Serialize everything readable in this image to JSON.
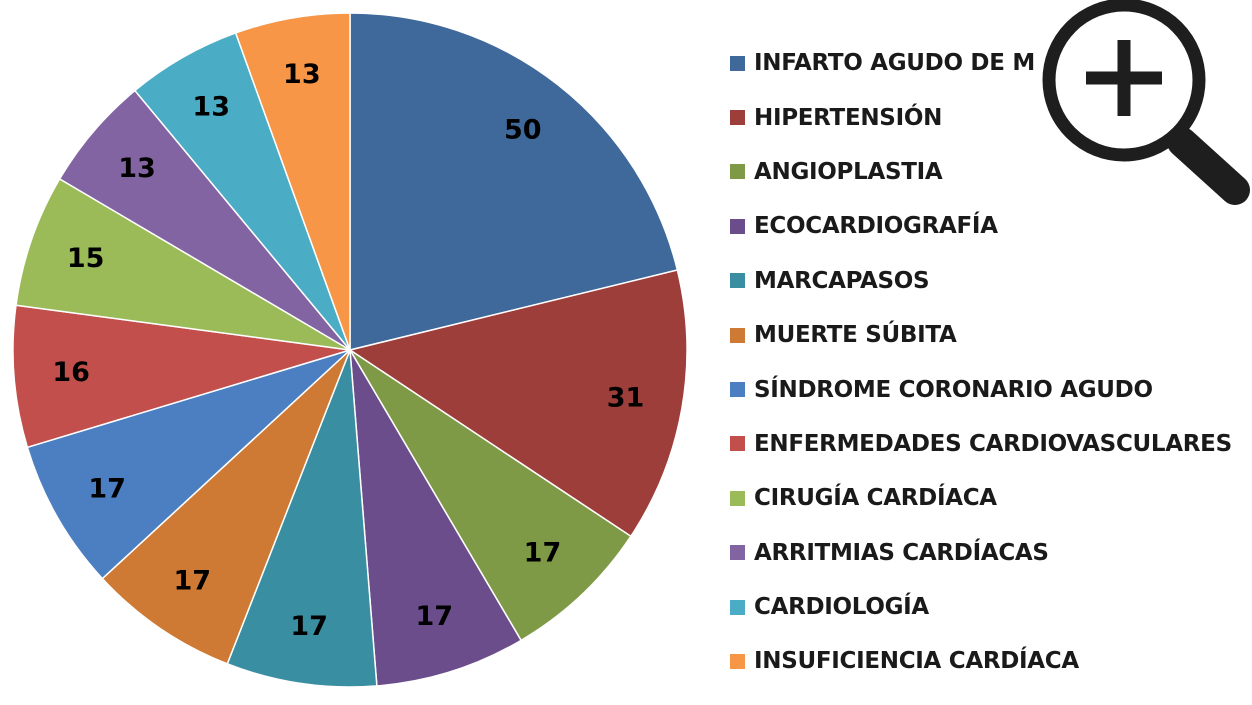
{
  "chart_data": {
    "type": "pie",
    "categories": [
      "INFARTO AGUDO DE MIOCARDIO",
      "HIPERTENSIÓN",
      "ANGIOPLASTIA",
      "ECOCARDIOGRAFÍA",
      "MARCAPASOS",
      "MUERTE SÚBITA",
      "SÍNDROME CORONARIO AGUDO",
      "ENFERMEDADES CARDIOVASCULARES",
      "CIRUGÍA CARDÍACA",
      "ARRITMIAS CARDÍACAS",
      "CARDIOLOGÍA",
      "INSUFICIENCIA CARDÍACA"
    ],
    "values": [
      50,
      31,
      17,
      17,
      17,
      17,
      17,
      16,
      15,
      13,
      13,
      13
    ],
    "colors": [
      "#3f689b",
      "#9e3e3b",
      "#7f9a47",
      "#6a4d8a",
      "#3a8ea2",
      "#cf7a34",
      "#4c7fc1",
      "#c24f4c",
      "#9bbb59",
      "#8264a2",
      "#4bacc6",
      "#f79646"
    ],
    "data_labels": [
      "50",
      "31",
      "17",
      "17",
      "17",
      "17",
      "17",
      "16",
      "15",
      "13",
      "13",
      "13"
    ],
    "legend_position": "right",
    "start_angle": "top, clockwise"
  },
  "legend": {
    "items": [
      "INFARTO AGUDO DE M",
      "HIPERTENSIÓN",
      "ANGIOPLASTIA",
      "ECOCARDIOGRAFÍA",
      "MARCAPASOS",
      "MUERTE SÚBITA",
      "SÍNDROME CORONARIO AGUDO",
      "ENFERMEDADES CARDIOVASCULARES",
      "CIRUGÍA CARDÍACA",
      "ARRITMIAS CARDÍACAS",
      "CARDIOLOGÍA",
      "INSUFICIENCIA CARDÍACA"
    ]
  },
  "zoom": {
    "icon": "zoom-in-icon",
    "color": "#1e1e1e"
  }
}
